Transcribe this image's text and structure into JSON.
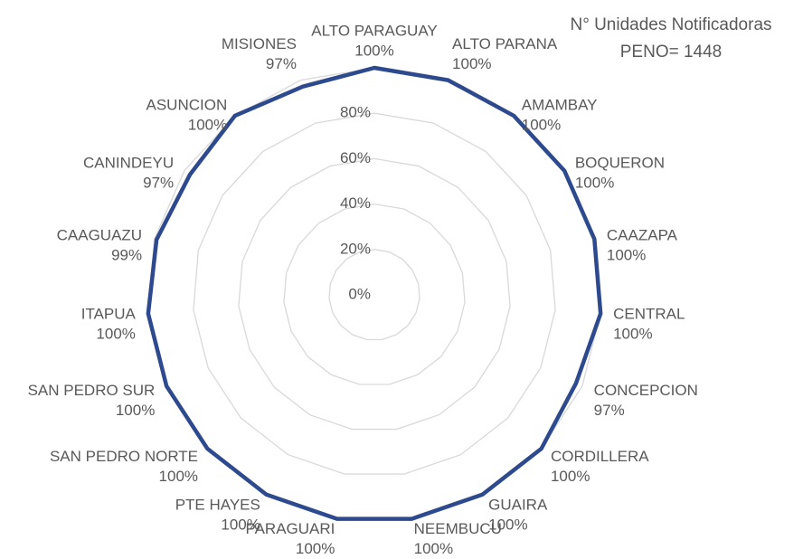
{
  "chart_data": {
    "type": "radar",
    "title": "N° Unidades Notificadoras",
    "subtitle": "PENO= 1448",
    "categories": [
      "ALTO PARAGUAY",
      "ALTO PARANA",
      "AMAMBAY",
      "BOQUERON",
      "CAAZAPA",
      "CENTRAL",
      "CONCEPCION",
      "CORDILLERA",
      "GUAIRA",
      "NEEMBUCU",
      "PARAGUARI",
      "PTE HAYES",
      "SAN PEDRO NORTE",
      "SAN PEDRO SUR",
      "ITAPUA",
      "CAAGUAZU",
      "CANINDEYU",
      "ASUNCION",
      "MISIONES"
    ],
    "values": [
      100,
      100,
      100,
      100,
      100,
      100,
      97,
      100,
      100,
      100,
      100,
      100,
      100,
      100,
      100,
      99,
      97,
      100,
      97
    ],
    "value_labels": [
      "100%",
      "100%",
      "100%",
      "100%",
      "100%",
      "100%",
      "97%",
      "100%",
      "100%",
      "100%",
      "100%",
      "100%",
      "100%",
      "100%",
      "100%",
      "99%",
      "97%",
      "100%",
      "97%"
    ],
    "color": "#2E4A8E",
    "ylim": [
      0,
      100
    ],
    "yticks": [
      {
        "value": 0,
        "label": "0%"
      },
      {
        "value": 20,
        "label": "20%"
      },
      {
        "value": 40,
        "label": "40%"
      },
      {
        "value": 60,
        "label": "60%"
      },
      {
        "value": 80,
        "label": "80%"
      }
    ],
    "grid": true
  }
}
